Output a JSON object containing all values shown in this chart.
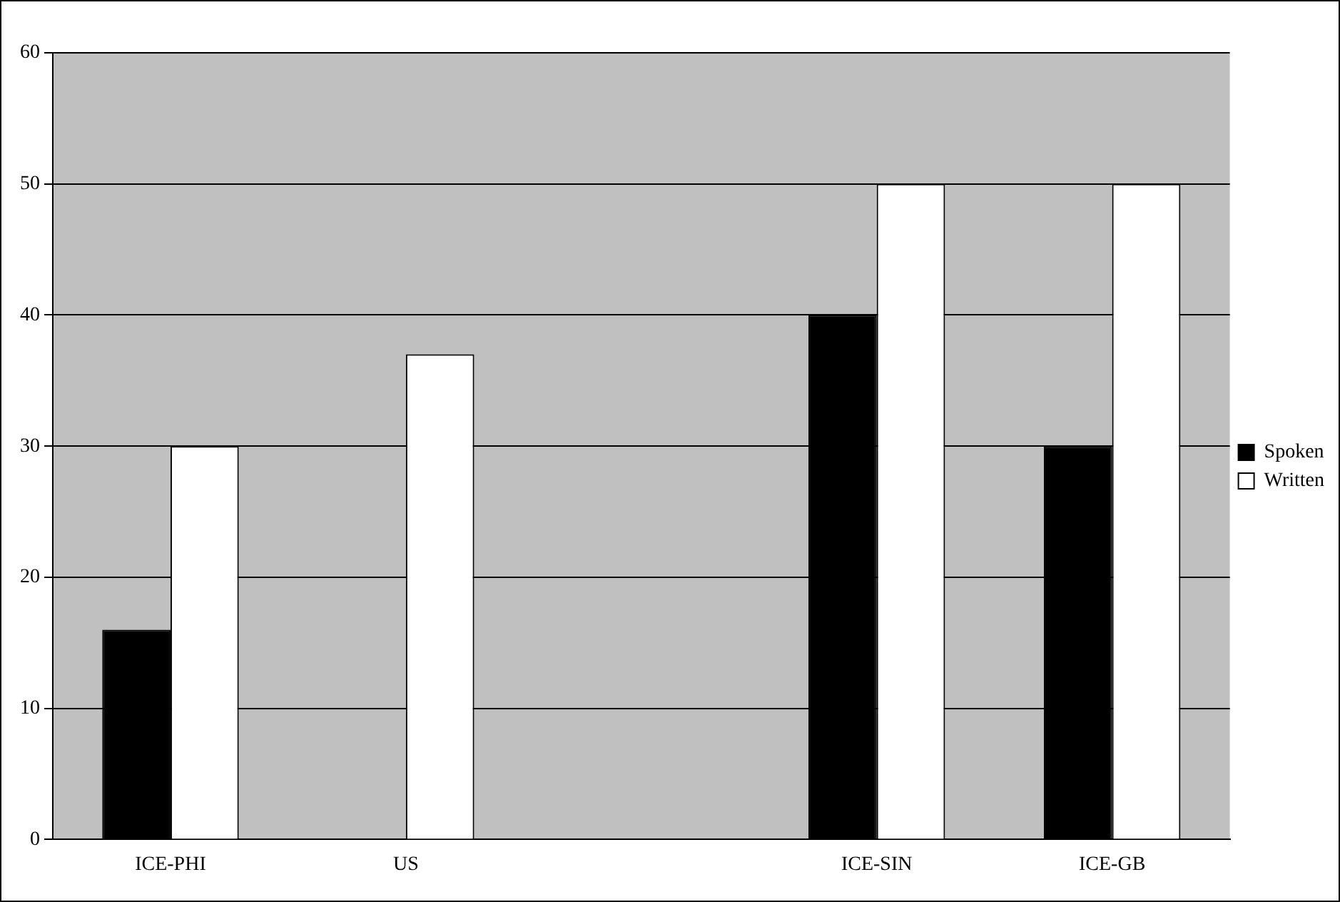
{
  "chart_data": {
    "type": "bar",
    "categories": [
      "ICE-PHI",
      "US",
      null,
      "ICE-SIN",
      "ICE-GB"
    ],
    "series": [
      {
        "name": "Spoken",
        "color": "#000000",
        "values": [
          16,
          null,
          null,
          40,
          30
        ]
      },
      {
        "name": "Written",
        "color": "#ffffff",
        "values": [
          30,
          37,
          null,
          50,
          50
        ]
      }
    ],
    "ylim": [
      0,
      60
    ],
    "yticks": [
      0,
      10,
      20,
      30,
      40,
      50,
      60
    ],
    "grid": "y",
    "legend": "right"
  }
}
